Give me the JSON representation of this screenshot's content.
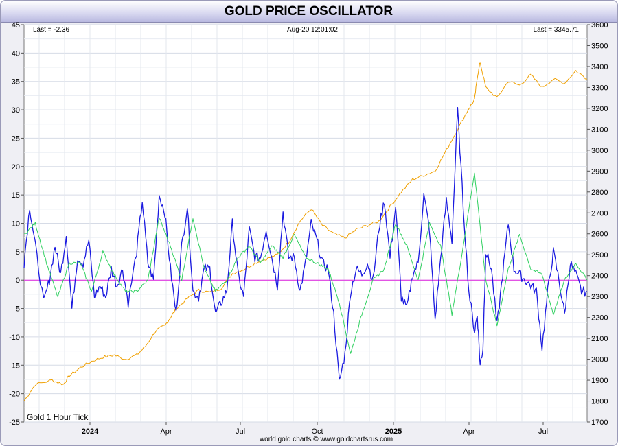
{
  "chart_data": {
    "type": "line",
    "title": "GOLD PRICE OSCILLATOR",
    "instrument_label": "Gold 1 Hour Tick",
    "header": {
      "last_left": "Last = -2.36",
      "timestamp": "Aug-20  12:01:02",
      "last_right": "Last = 3345.71"
    },
    "credit": "world gold charts © www.goldchartsrus.com",
    "x_ticks": [
      {
        "label": "2024",
        "bold": true
      },
      {
        "label": "Apr",
        "bold": false
      },
      {
        "label": "Jul",
        "bold": false
      },
      {
        "label": "Oct",
        "bold": false
      },
      {
        "label": "2025",
        "bold": true
      },
      {
        "label": "Apr",
        "bold": false
      },
      {
        "label": "Jul",
        "bold": false
      }
    ],
    "y_left": {
      "min": -25,
      "max": 45,
      "step": 5
    },
    "y_right": {
      "min": 1700,
      "max": 3600,
      "step": 100
    },
    "grid": true,
    "zero_line_color": "#e020e0",
    "series": [
      {
        "name": "",
        "axis": "right",
        "color": "#f0a000",
        "x": [
          0,
          0.02,
          0.05,
          0.07,
          0.08,
          0.1,
          0.12,
          0.14,
          0.16,
          0.18,
          0.2,
          0.215,
          0.235,
          0.25,
          0.26,
          0.27,
          0.29,
          0.31,
          0.33,
          0.35,
          0.37,
          0.39,
          0.41,
          0.43,
          0.45,
          0.47,
          0.49,
          0.51,
          0.53,
          0.55,
          0.57,
          0.59,
          0.61,
          0.63,
          0.65,
          0.67,
          0.69,
          0.71,
          0.73,
          0.75,
          0.77,
          0.79,
          0.8,
          0.805,
          0.81,
          0.82,
          0.84,
          0.86,
          0.88,
          0.9,
          0.92,
          0.94,
          0.96,
          0.98,
          1.0
        ],
        "y": [
          1800,
          1880,
          1900,
          1880,
          1920,
          1960,
          1990,
          2010,
          2020,
          2000,
          2020,
          2060,
          2140,
          2160,
          2200,
          2240,
          2290,
          2330,
          2320,
          2340,
          2410,
          2430,
          2460,
          2480,
          2500,
          2560,
          2660,
          2720,
          2640,
          2600,
          2580,
          2620,
          2640,
          2660,
          2730,
          2800,
          2860,
          2880,
          2900,
          3000,
          3100,
          3200,
          3240,
          3350,
          3420,
          3300,
          3250,
          3330,
          3310,
          3360,
          3300,
          3340,
          3320,
          3380,
          3340
        ]
      },
      {
        "name": "",
        "axis": "left",
        "color": "#1a1ae0",
        "x": [
          0,
          0.01,
          0.02,
          0.035,
          0.045,
          0.055,
          0.065,
          0.075,
          0.085,
          0.095,
          0.105,
          0.115,
          0.125,
          0.135,
          0.145,
          0.155,
          0.165,
          0.175,
          0.185,
          0.2,
          0.21,
          0.22,
          0.23,
          0.24,
          0.25,
          0.26,
          0.27,
          0.28,
          0.29,
          0.3,
          0.31,
          0.32,
          0.33,
          0.34,
          0.35,
          0.36,
          0.37,
          0.38,
          0.39,
          0.4,
          0.41,
          0.42,
          0.43,
          0.44,
          0.45,
          0.46,
          0.47,
          0.48,
          0.49,
          0.5,
          0.51,
          0.52,
          0.53,
          0.54,
          0.55,
          0.56,
          0.57,
          0.58,
          0.59,
          0.6,
          0.61,
          0.62,
          0.63,
          0.64,
          0.65,
          0.66,
          0.67,
          0.68,
          0.69,
          0.7,
          0.71,
          0.72,
          0.73,
          0.74,
          0.75,
          0.76,
          0.77,
          0.78,
          0.79,
          0.8,
          0.805,
          0.81,
          0.815,
          0.82,
          0.83,
          0.84,
          0.85,
          0.86,
          0.87,
          0.88,
          0.89,
          0.9,
          0.91,
          0.92,
          0.93,
          0.94,
          0.95,
          0.96,
          0.97,
          0.98,
          0.99,
          1.0
        ],
        "y": [
          3,
          13,
          6,
          -4,
          0,
          6,
          1,
          8,
          -5,
          4,
          3,
          7,
          -3,
          -1,
          -3,
          2,
          -1,
          2,
          -4,
          5,
          14,
          3,
          0,
          15,
          12,
          2,
          -6,
          6,
          13,
          -2,
          -3,
          2,
          2,
          -6,
          -4,
          -2,
          10,
          1,
          -3,
          9,
          4,
          4,
          9,
          4,
          -1,
          12,
          4,
          4,
          -2,
          3,
          10,
          7,
          3,
          2,
          -6,
          -18,
          -13,
          -2,
          2,
          1,
          3,
          0,
          9,
          14,
          4,
          13,
          -3,
          -5,
          1,
          3,
          15,
          9,
          -7,
          4,
          14,
          7,
          30,
          13,
          -2,
          -9,
          -6,
          -15,
          -12,
          5,
          2,
          -8,
          1,
          10,
          2,
          1,
          0,
          -1,
          -2,
          -12,
          -2,
          5,
          0,
          -6,
          3,
          1,
          -2,
          -2
        ]
      },
      {
        "name": "",
        "axis": "left",
        "color": "#30d060",
        "x": [
          0,
          0.02,
          0.04,
          0.06,
          0.08,
          0.1,
          0.12,
          0.14,
          0.16,
          0.18,
          0.2,
          0.22,
          0.24,
          0.26,
          0.28,
          0.3,
          0.32,
          0.34,
          0.36,
          0.38,
          0.4,
          0.42,
          0.44,
          0.46,
          0.48,
          0.5,
          0.52,
          0.54,
          0.56,
          0.58,
          0.6,
          0.62,
          0.64,
          0.66,
          0.68,
          0.7,
          0.72,
          0.74,
          0.76,
          0.78,
          0.8,
          0.82,
          0.84,
          0.86,
          0.88,
          0.9,
          0.92,
          0.94,
          0.96,
          0.98,
          1.0
        ],
        "y": [
          8,
          10,
          3,
          -3,
          3,
          3,
          -2,
          5,
          1,
          -2,
          -2,
          0,
          11,
          6,
          0,
          11,
          2,
          -2,
          0,
          4,
          6,
          3,
          6,
          4,
          8,
          4,
          3,
          2,
          -4,
          -13,
          -6,
          0,
          2,
          10,
          6,
          0,
          10,
          6,
          -6,
          6,
          19,
          0,
          -8,
          2,
          8,
          2,
          1,
          -6,
          0,
          3,
          0
        ]
      }
    ]
  }
}
